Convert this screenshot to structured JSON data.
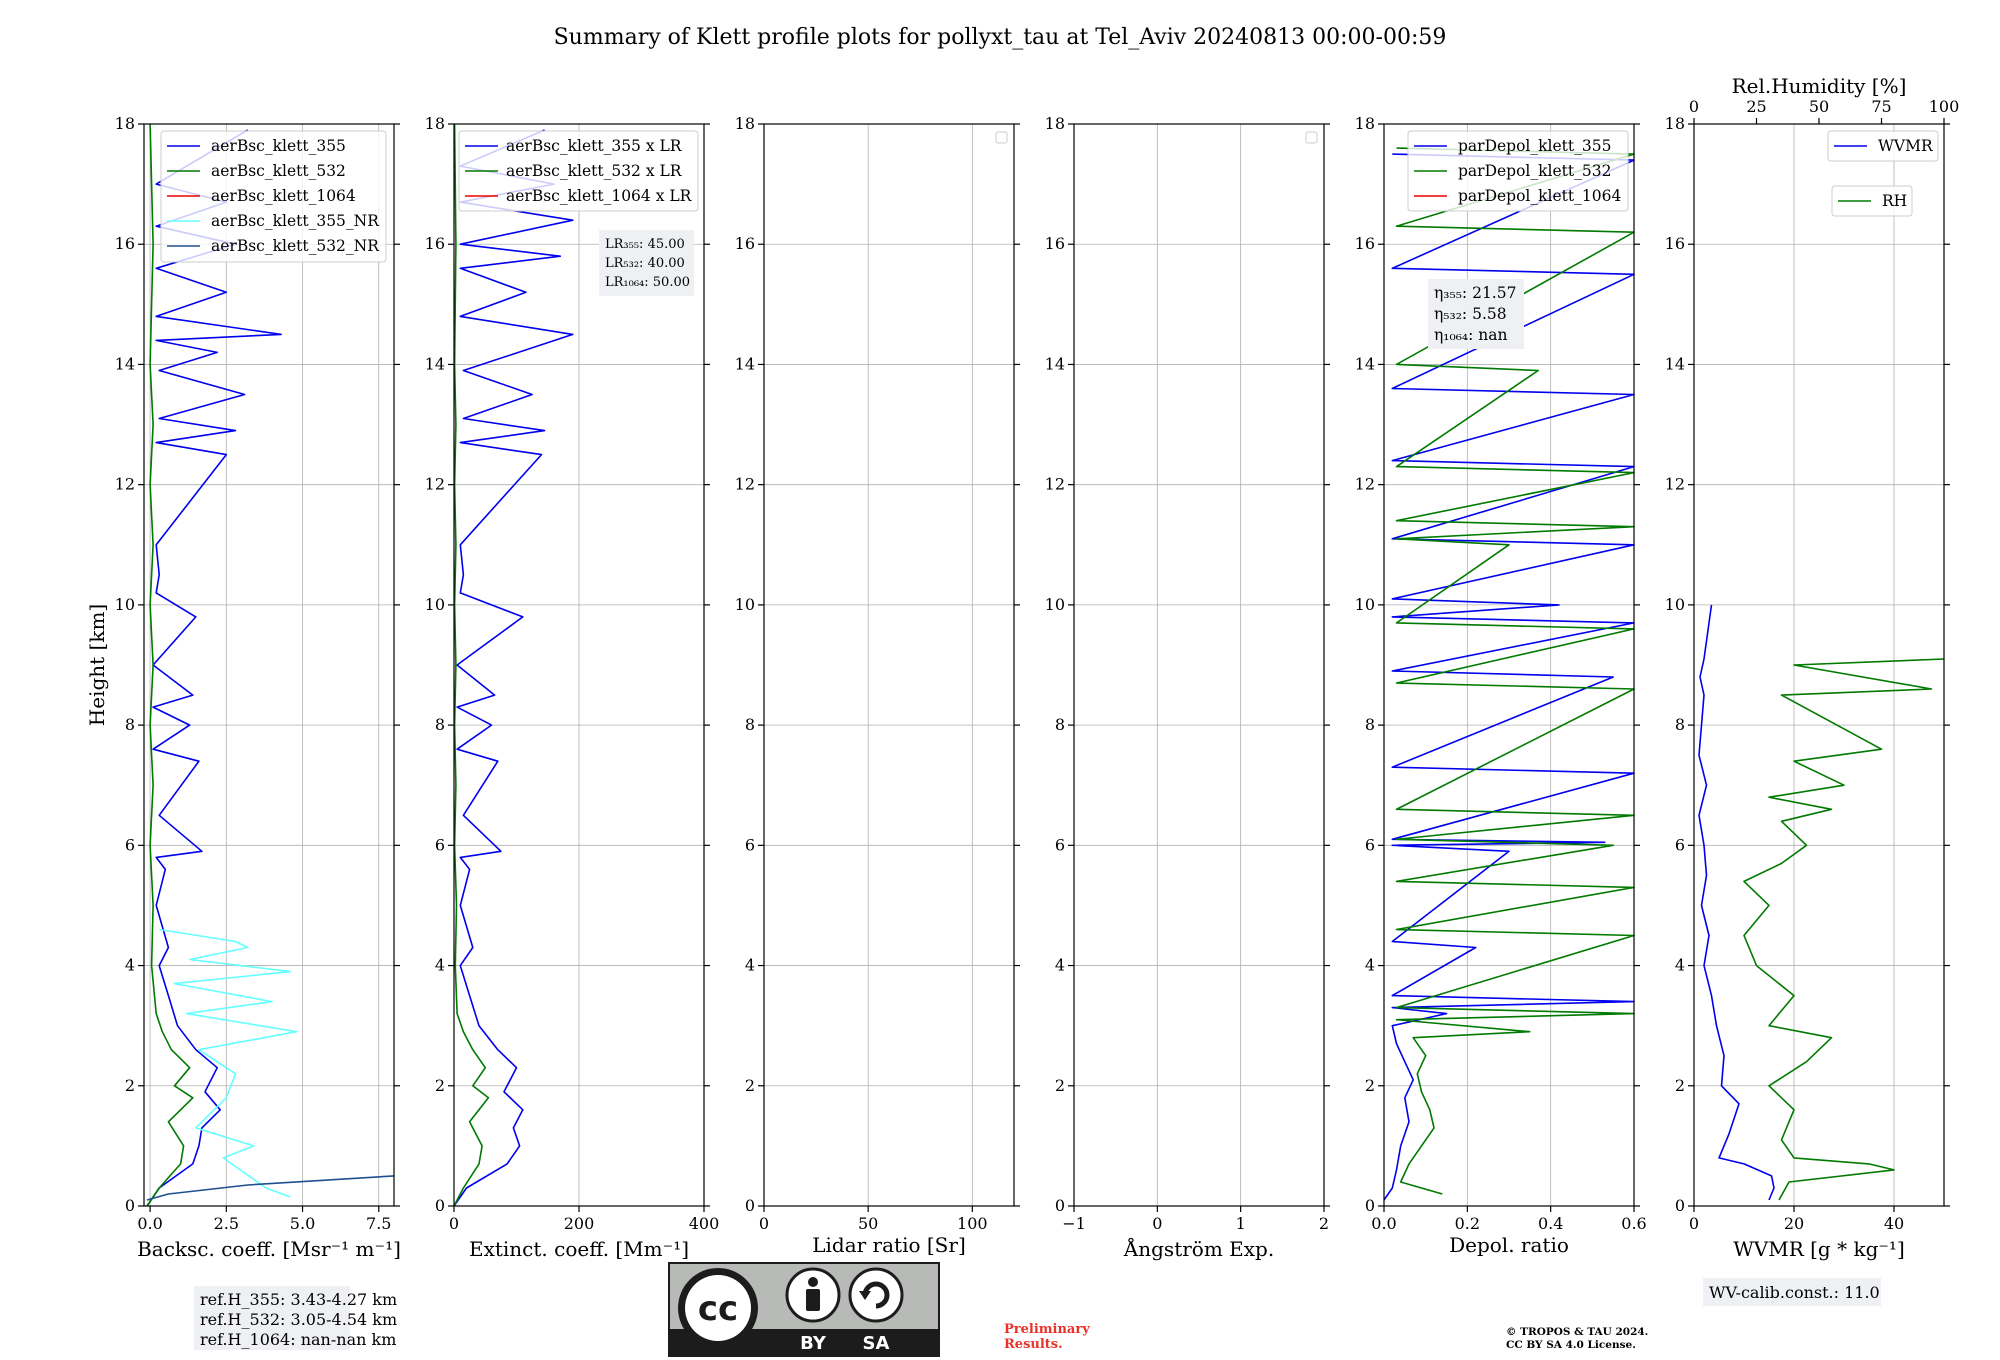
{
  "figure": {
    "title": "Summary of Klett profile plots for pollyxt_tau at Tel_Aviv 20240813 00:00-00:59",
    "colors": {
      "b355": "#0000ee",
      "g532": "#007a00",
      "r1064": "#ee0000",
      "cyanNR": "#66ffff",
      "nrDark": "#1f4f8f"
    }
  },
  "chart_data": [
    {
      "type": "line",
      "ylabel": "Height [km]",
      "xlabel": "Backsc. coeff. [Msr⁻¹ m⁻¹]",
      "xlim": [
        -0.2,
        8.0
      ],
      "ylim": [
        0,
        18
      ],
      "xticks": [
        0,
        2.5,
        5,
        7.5
      ],
      "xtick_labels": [
        "0.0",
        "2.5",
        "5.0",
        "7.5"
      ],
      "yticks": [
        0,
        2,
        4,
        6,
        8,
        10,
        12,
        14,
        16,
        18
      ],
      "grid": true,
      "legend_position": "top-right",
      "series": [
        {
          "name": "aerBsc_klett_355",
          "color": "#0000ee",
          "x": [
            -0.1,
            0.3,
            1.4,
            1.6,
            1.7,
            2.3,
            1.8,
            2.2,
            1.5,
            0.9,
            0.6,
            0.3,
            0.6,
            0.2,
            0.5,
            0.2,
            1.7,
            0.3,
            1.6,
            0.1,
            1.3,
            0.1,
            1.4,
            0.1,
            1.5,
            0.2,
            0.3,
            0.2,
            2.5,
            0.2,
            2.8,
            0.3,
            3.1,
            0.3,
            2.2,
            0.2,
            4.3,
            0.2,
            2.5,
            0.2,
            2.8,
            0.2,
            2.5,
            0.2,
            3.2
          ],
          "y": [
            0,
            0.3,
            0.7,
            1.0,
            1.3,
            1.6,
            1.9,
            2.3,
            2.6,
            3.0,
            3.5,
            4.0,
            4.3,
            5.0,
            5.6,
            5.8,
            5.9,
            6.5,
            7.4,
            7.6,
            8.0,
            8.3,
            8.5,
            9.0,
            9.8,
            10.2,
            10.5,
            11.0,
            12.5,
            12.7,
            12.9,
            13.1,
            13.5,
            13.9,
            14.2,
            14.4,
            14.5,
            14.8,
            15.2,
            15.6,
            16.0,
            16.3,
            16.7,
            17.0,
            17.9
          ]
        },
        {
          "name": "aerBsc_klett_532",
          "color": "#007a00",
          "x": [
            -0.1,
            0.3,
            1.0,
            1.1,
            0.6,
            1.4,
            0.8,
            1.3,
            0.7,
            0.4,
            0.2,
            0.05,
            0.1,
            0.0,
            0.1,
            0.0,
            0.1,
            0.0,
            0.1,
            0.0,
            0.1,
            0.0,
            0.1,
            0.0
          ],
          "y": [
            0,
            0.3,
            0.7,
            1.0,
            1.4,
            1.8,
            2.0,
            2.3,
            2.6,
            2.9,
            3.2,
            4.0,
            5.0,
            6.0,
            7.0,
            8.0,
            9.0,
            10.0,
            11.0,
            12.0,
            13.0,
            14.0,
            16.0,
            18.0
          ]
        },
        {
          "name": "aerBsc_klett_1064",
          "color": "#ee0000",
          "x": [],
          "y": []
        },
        {
          "name": "aerBsc_klett_355_NR",
          "color": "#66ffff",
          "x": [
            4.6,
            3.8,
            2.4,
            3.4,
            1.5,
            2.1,
            2.5,
            2.8,
            1.6,
            4.8,
            1.2,
            4.0,
            0.8,
            4.6,
            1.3,
            3.2,
            2.8,
            0.3
          ],
          "y": [
            0.15,
            0.3,
            0.8,
            1.0,
            1.3,
            1.6,
            1.8,
            2.2,
            2.6,
            2.9,
            3.2,
            3.4,
            3.7,
            3.9,
            4.1,
            4.3,
            4.4,
            4.6
          ]
        },
        {
          "name": "aerBsc_klett_532_NR",
          "color": "#1f4f8f",
          "x": [
            -0.1,
            0.6,
            3.2,
            8.0
          ],
          "y": [
            0.1,
            0.2,
            0.35,
            0.5
          ]
        }
      ]
    },
    {
      "type": "line",
      "xlabel": "Extinct. coeff. [Mm⁻¹]",
      "xlim": [
        0,
        400
      ],
      "ylim": [
        0,
        18
      ],
      "xticks": [
        0,
        200,
        400
      ],
      "xtick_labels": [
        "0",
        "200",
        "400"
      ],
      "grid": true,
      "legend_position": "top-right",
      "series": [
        {
          "name": "aerBsc_klett_355 x LR",
          "color": "#0000ee",
          "x": [
            0,
            20,
            85,
            105,
            95,
            110,
            80,
            100,
            70,
            40,
            25,
            10,
            30,
            10,
            25,
            10,
            75,
            15,
            70,
            5,
            60,
            5,
            65,
            5,
            110,
            10,
            15,
            10,
            140,
            10,
            145,
            15,
            125,
            15,
            190,
            10,
            115,
            10,
            170,
            10,
            190,
            10,
            160,
            10,
            145
          ],
          "y": [
            0,
            0.3,
            0.7,
            1.0,
            1.3,
            1.6,
            1.9,
            2.3,
            2.6,
            3.0,
            3.5,
            4.0,
            4.3,
            5.0,
            5.6,
            5.8,
            5.9,
            6.5,
            7.4,
            7.6,
            8.0,
            8.3,
            8.5,
            9.0,
            9.8,
            10.2,
            10.5,
            11.0,
            12.5,
            12.7,
            12.9,
            13.1,
            13.5,
            13.9,
            14.5,
            14.8,
            15.2,
            15.6,
            15.8,
            16.0,
            16.4,
            16.7,
            17.0,
            17.3,
            17.9
          ]
        },
        {
          "name": "aerBsc_klett_532 x LR",
          "color": "#007a00",
          "x": [
            0,
            15,
            40,
            45,
            25,
            55,
            30,
            50,
            30,
            15,
            5,
            2,
            4,
            1,
            3,
            1,
            3,
            1,
            3,
            1,
            3,
            1,
            3,
            1
          ],
          "y": [
            0,
            0.3,
            0.7,
            1.0,
            1.4,
            1.8,
            2.0,
            2.3,
            2.6,
            2.9,
            3.2,
            4.0,
            5.0,
            6.0,
            7.0,
            8.0,
            9.0,
            10.0,
            11.0,
            12.0,
            13.0,
            14.0,
            16.0,
            18.0
          ]
        },
        {
          "name": "aerBsc_klett_1064 x LR",
          "color": "#ee0000",
          "x": [],
          "y": []
        }
      ]
    },
    {
      "type": "line",
      "xlabel": "Lidar ratio [Sr]",
      "xlim": [
        0,
        120
      ],
      "ylim": [
        0,
        18
      ],
      "xticks": [
        0,
        50,
        100
      ],
      "xtick_labels": [
        "0",
        "50",
        "100"
      ],
      "grid": true,
      "series": []
    },
    {
      "type": "line",
      "xlabel": "Ångström Exp.",
      "xlim": [
        -1,
        2
      ],
      "ylim": [
        0,
        18
      ],
      "xticks": [
        -1,
        0,
        1,
        2
      ],
      "xtick_labels": [
        "−1",
        "0",
        "1",
        "2"
      ],
      "grid": true,
      "series": []
    },
    {
      "type": "line",
      "xlabel": "Depol. ratio",
      "xlim": [
        0,
        0.6
      ],
      "ylim": [
        0,
        18
      ],
      "xticks": [
        0,
        0.2,
        0.4,
        0.6
      ],
      "xtick_labels": [
        "0.0",
        "0.2",
        "0.4",
        "0.6"
      ],
      "grid": true,
      "legend_position": "top-right",
      "series": [
        {
          "name": "parDepol_klett_355",
          "color": "#0000ee",
          "x": [
            0.0,
            0.02,
            0.03,
            0.04,
            0.06,
            0.05,
            0.07,
            0.05,
            0.03,
            0.02,
            0.15,
            0.02,
            0.6,
            0.02,
            0.22,
            0.02,
            0.3,
            0.02,
            0.53,
            0.02,
            0.6,
            0.02,
            0.55,
            0.02,
            0.6,
            0.02,
            0.42,
            0.02,
            0.6,
            0.02,
            0.6,
            0.02,
            0.6,
            0.02,
            0.6,
            0.02,
            0.6,
            0.02
          ],
          "y": [
            0.1,
            0.3,
            0.6,
            1.0,
            1.4,
            1.8,
            2.1,
            2.4,
            2.7,
            3.0,
            3.2,
            3.3,
            3.4,
            3.5,
            4.3,
            4.4,
            5.9,
            6.0,
            6.05,
            6.1,
            7.2,
            7.3,
            8.8,
            8.9,
            9.7,
            9.8,
            10.0,
            10.1,
            11.0,
            11.1,
            12.3,
            12.4,
            13.5,
            13.6,
            15.5,
            15.6,
            17.4,
            17.5
          ]
        },
        {
          "name": "parDepol_klett_532",
          "color": "#007a00",
          "x": [
            0.14,
            0.04,
            0.06,
            0.09,
            0.12,
            0.11,
            0.09,
            0.08,
            0.1,
            0.07,
            0.35,
            0.03,
            0.6,
            0.03,
            0.6,
            0.03,
            0.6,
            0.03,
            0.55,
            0.03,
            0.6,
            0.03,
            0.6,
            0.03,
            0.6,
            0.03,
            0.3,
            0.03,
            0.6,
            0.03,
            0.6,
            0.03,
            0.37,
            0.03,
            0.6,
            0.03,
            0.6,
            0.03
          ],
          "y": [
            0.2,
            0.4,
            0.7,
            1.0,
            1.3,
            1.6,
            1.9,
            2.2,
            2.5,
            2.8,
            2.9,
            3.1,
            3.2,
            3.3,
            4.5,
            4.6,
            5.3,
            5.4,
            6.0,
            6.1,
            6.5,
            6.6,
            8.6,
            8.7,
            9.6,
            9.7,
            11.0,
            11.1,
            11.3,
            11.4,
            12.2,
            12.3,
            13.9,
            14.0,
            16.2,
            16.3,
            17.5,
            17.6
          ]
        },
        {
          "name": "parDepol_klett_1064",
          "color": "#ee0000",
          "x": [],
          "y": []
        }
      ]
    },
    {
      "type": "line",
      "xlabel": "WVMR [g * kg⁻¹]",
      "xlim": [
        0,
        50
      ],
      "ylim": [
        0,
        18
      ],
      "xticks": [
        0,
        20,
        40
      ],
      "xtick_labels": [
        "0",
        "20",
        "40"
      ],
      "top_xlabel": "Rel.Humidity [%]",
      "top_xlim": [
        0,
        100
      ],
      "top_xticks": [
        0,
        25,
        50,
        75,
        100
      ],
      "top_xtick_labels": [
        "0",
        "25",
        "50",
        "75",
        "100"
      ],
      "grid": true,
      "legend_position": "top-right",
      "series": [
        {
          "name": "WVMR",
          "color": "#0000ee",
          "x": [
            15.0,
            16.0,
            15.5,
            10.0,
            5.0,
            7.0,
            9.0,
            5.5,
            6.0,
            4.5,
            3.5,
            2.0,
            3.0,
            1.5,
            2.5,
            2.0,
            1.0,
            2.5,
            1.0,
            1.5,
            2.0,
            1.2,
            2.0,
            3.5
          ],
          "y": [
            0.1,
            0.3,
            0.5,
            0.7,
            0.8,
            1.2,
            1.7,
            2.0,
            2.5,
            3.0,
            3.5,
            4.0,
            4.5,
            5.0,
            5.5,
            6.0,
            6.5,
            7.0,
            7.5,
            8.0,
            8.5,
            8.8,
            9.1,
            10.0
          ]
        },
        {
          "name": "RH",
          "color": "#007a00",
          "x": [
            34,
            38,
            80,
            70,
            40,
            35,
            40,
            30,
            45,
            55,
            30,
            40,
            25,
            20,
            30,
            20,
            35,
            45,
            35,
            55,
            30,
            60,
            40,
            75,
            35,
            95,
            40,
            100
          ],
          "y": [
            0.1,
            0.4,
            0.6,
            0.7,
            0.8,
            1.1,
            1.6,
            2.0,
            2.4,
            2.8,
            3.0,
            3.5,
            4.0,
            4.5,
            5.0,
            5.4,
            5.7,
            6.0,
            6.4,
            6.6,
            6.8,
            7.0,
            7.4,
            7.6,
            8.5,
            8.6,
            9.0,
            9.1
          ]
        }
      ]
    }
  ],
  "annotations": {
    "lr": {
      "lines": [
        "LR₃₅₅: 45.00",
        "LR₅₃₂: 40.00",
        "LR₁₀₆₄: 50.00"
      ]
    },
    "eta": {
      "lines": [
        "η₃₅₅: 21.57",
        "η₅₃₂: 5.58",
        "η₁₀₆₄: nan"
      ]
    },
    "refh": {
      "lines": [
        "ref.H_355: 3.43-4.27 km",
        "ref.H_532: 3.05-4.54 km",
        "ref.H_1064: nan-nan km"
      ]
    },
    "wvcalib": "WV-calib.const.: 11.0",
    "license": {
      "by": "BY",
      "sa": "SA"
    },
    "preliminary": [
      "Preliminary",
      "Results."
    ],
    "copyright": [
      "© TROPOS & TAU 2024.",
      "CC BY SA 4.0 License."
    ]
  }
}
